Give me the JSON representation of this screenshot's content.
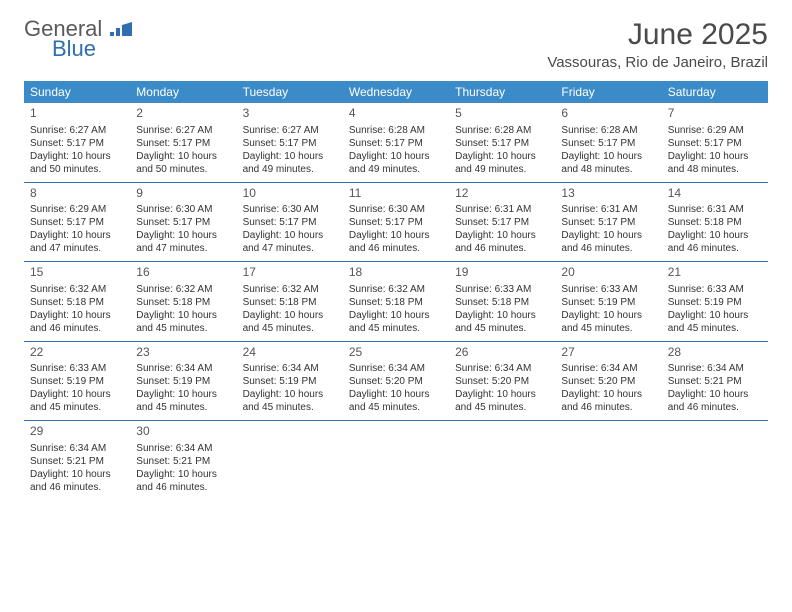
{
  "logo": {
    "part1": "General",
    "part2": "Blue",
    "text_color_1": "#5a5a5a",
    "text_color_2": "#2f6fb0",
    "icon_color": "#2f6fb0"
  },
  "header": {
    "month_title": "June 2025",
    "location": "Vassouras, Rio de Janeiro, Brazil",
    "title_fontsize": 30,
    "title_color": "#4a4a4a"
  },
  "calendar": {
    "header_bg": "#3b8bc9",
    "header_fg": "#ffffff",
    "border_color": "#2f6fb0",
    "days": [
      "Sunday",
      "Monday",
      "Tuesday",
      "Wednesday",
      "Thursday",
      "Friday",
      "Saturday"
    ],
    "labels": {
      "sunrise": "Sunrise:",
      "sunset": "Sunset:",
      "daylight": "Daylight:"
    },
    "cells": [
      {
        "n": "1",
        "sr": "6:27 AM",
        "ss": "5:17 PM",
        "dl": "10 hours and 50 minutes."
      },
      {
        "n": "2",
        "sr": "6:27 AM",
        "ss": "5:17 PM",
        "dl": "10 hours and 50 minutes."
      },
      {
        "n": "3",
        "sr": "6:27 AM",
        "ss": "5:17 PM",
        "dl": "10 hours and 49 minutes."
      },
      {
        "n": "4",
        "sr": "6:28 AM",
        "ss": "5:17 PM",
        "dl": "10 hours and 49 minutes."
      },
      {
        "n": "5",
        "sr": "6:28 AM",
        "ss": "5:17 PM",
        "dl": "10 hours and 49 minutes."
      },
      {
        "n": "6",
        "sr": "6:28 AM",
        "ss": "5:17 PM",
        "dl": "10 hours and 48 minutes."
      },
      {
        "n": "7",
        "sr": "6:29 AM",
        "ss": "5:17 PM",
        "dl": "10 hours and 48 minutes."
      },
      {
        "n": "8",
        "sr": "6:29 AM",
        "ss": "5:17 PM",
        "dl": "10 hours and 47 minutes."
      },
      {
        "n": "9",
        "sr": "6:30 AM",
        "ss": "5:17 PM",
        "dl": "10 hours and 47 minutes."
      },
      {
        "n": "10",
        "sr": "6:30 AM",
        "ss": "5:17 PM",
        "dl": "10 hours and 47 minutes."
      },
      {
        "n": "11",
        "sr": "6:30 AM",
        "ss": "5:17 PM",
        "dl": "10 hours and 46 minutes."
      },
      {
        "n": "12",
        "sr": "6:31 AM",
        "ss": "5:17 PM",
        "dl": "10 hours and 46 minutes."
      },
      {
        "n": "13",
        "sr": "6:31 AM",
        "ss": "5:17 PM",
        "dl": "10 hours and 46 minutes."
      },
      {
        "n": "14",
        "sr": "6:31 AM",
        "ss": "5:18 PM",
        "dl": "10 hours and 46 minutes."
      },
      {
        "n": "15",
        "sr": "6:32 AM",
        "ss": "5:18 PM",
        "dl": "10 hours and 46 minutes."
      },
      {
        "n": "16",
        "sr": "6:32 AM",
        "ss": "5:18 PM",
        "dl": "10 hours and 45 minutes."
      },
      {
        "n": "17",
        "sr": "6:32 AM",
        "ss": "5:18 PM",
        "dl": "10 hours and 45 minutes."
      },
      {
        "n": "18",
        "sr": "6:32 AM",
        "ss": "5:18 PM",
        "dl": "10 hours and 45 minutes."
      },
      {
        "n": "19",
        "sr": "6:33 AM",
        "ss": "5:18 PM",
        "dl": "10 hours and 45 minutes."
      },
      {
        "n": "20",
        "sr": "6:33 AM",
        "ss": "5:19 PM",
        "dl": "10 hours and 45 minutes."
      },
      {
        "n": "21",
        "sr": "6:33 AM",
        "ss": "5:19 PM",
        "dl": "10 hours and 45 minutes."
      },
      {
        "n": "22",
        "sr": "6:33 AM",
        "ss": "5:19 PM",
        "dl": "10 hours and 45 minutes."
      },
      {
        "n": "23",
        "sr": "6:34 AM",
        "ss": "5:19 PM",
        "dl": "10 hours and 45 minutes."
      },
      {
        "n": "24",
        "sr": "6:34 AM",
        "ss": "5:19 PM",
        "dl": "10 hours and 45 minutes."
      },
      {
        "n": "25",
        "sr": "6:34 AM",
        "ss": "5:20 PM",
        "dl": "10 hours and 45 minutes."
      },
      {
        "n": "26",
        "sr": "6:34 AM",
        "ss": "5:20 PM",
        "dl": "10 hours and 45 minutes."
      },
      {
        "n": "27",
        "sr": "6:34 AM",
        "ss": "5:20 PM",
        "dl": "10 hours and 46 minutes."
      },
      {
        "n": "28",
        "sr": "6:34 AM",
        "ss": "5:21 PM",
        "dl": "10 hours and 46 minutes."
      },
      {
        "n": "29",
        "sr": "6:34 AM",
        "ss": "5:21 PM",
        "dl": "10 hours and 46 minutes."
      },
      {
        "n": "30",
        "sr": "6:34 AM",
        "ss": "5:21 PM",
        "dl": "10 hours and 46 minutes."
      }
    ]
  }
}
